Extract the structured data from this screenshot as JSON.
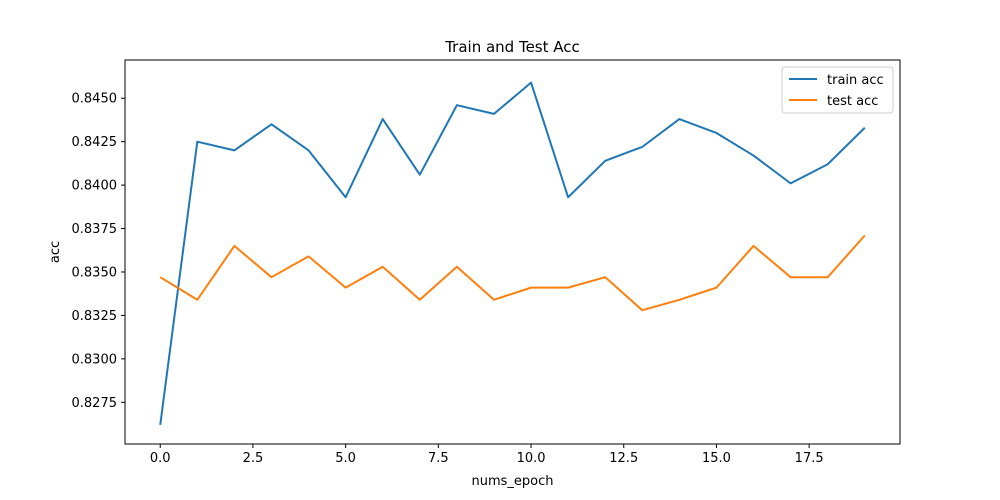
{
  "chart_data": {
    "type": "line",
    "title": "Train and Test Acc",
    "xlabel": "nums_epoch",
    "ylabel": "acc",
    "xlim": [
      -0.95,
      19.95
    ],
    "ylim": [
      0.8251,
      0.8472
    ],
    "xticks": [
      0.0,
      2.5,
      5.0,
      7.5,
      10.0,
      12.5,
      15.0,
      17.5
    ],
    "xtick_labels": [
      "0.0",
      "2.5",
      "5.0",
      "7.5",
      "10.0",
      "12.5",
      "15.0",
      "17.5"
    ],
    "yticks": [
      0.8275,
      0.83,
      0.8325,
      0.835,
      0.8375,
      0.84,
      0.8425,
      0.845
    ],
    "ytick_labels": [
      "0.8275",
      "0.8300",
      "0.8325",
      "0.8350",
      "0.8375",
      "0.8400",
      "0.8425",
      "0.8450"
    ],
    "grid": false,
    "legend_position": "top-right",
    "x": [
      0,
      1,
      2,
      3,
      4,
      5,
      6,
      7,
      8,
      9,
      10,
      11,
      12,
      13,
      14,
      15,
      16,
      17,
      18,
      19
    ],
    "series": [
      {
        "name": "train acc",
        "color": "#1f77b4",
        "values": [
          0.8262,
          0.8425,
          0.842,
          0.8435,
          0.842,
          0.8393,
          0.8438,
          0.8406,
          0.8446,
          0.8441,
          0.8459,
          0.8393,
          0.8414,
          0.8422,
          0.8438,
          0.843,
          0.8417,
          0.8401,
          0.8412,
          0.8433
        ]
      },
      {
        "name": "test acc",
        "color": "#ff7f0e",
        "values": [
          0.8347,
          0.8334,
          0.8365,
          0.8347,
          0.8359,
          0.8341,
          0.8353,
          0.8334,
          0.8353,
          0.8334,
          0.8341,
          0.8341,
          0.8347,
          0.8328,
          0.8334,
          0.8341,
          0.8365,
          0.8347,
          0.8347,
          0.8371
        ]
      }
    ]
  }
}
